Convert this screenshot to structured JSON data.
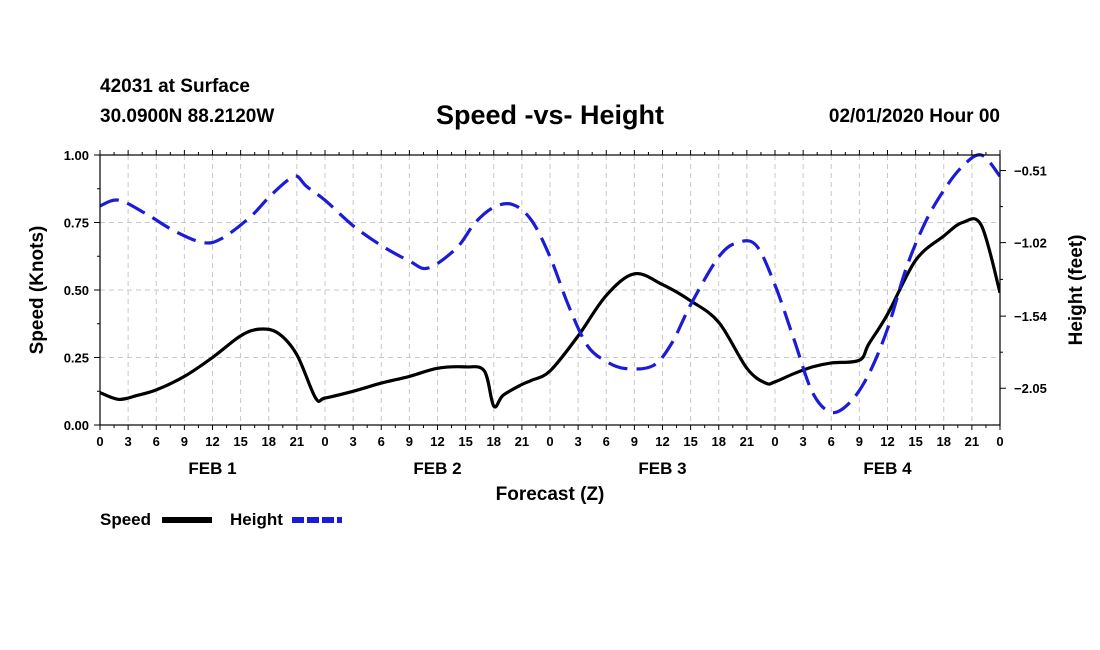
{
  "header": {
    "station": "42031 at Surface",
    "coords": "30.0900N 88.2120W",
    "title": "Speed -vs- Height",
    "datetime": "02/01/2020 Hour 00"
  },
  "chart_data": {
    "type": "line",
    "title": "Speed -vs- Height",
    "xlabel": "Forecast (Z)",
    "ylabel": "Speed (Knots)",
    "y2label": "Height (feet)",
    "grid": true,
    "x_unit": "hours since 02/01/2020 00Z",
    "xlim": [
      0,
      96
    ],
    "ylim": [
      0,
      1.0
    ],
    "y2lim": [
      -2.31,
      -0.4
    ],
    "x_ticks": [
      0,
      3,
      6,
      9,
      12,
      15,
      18,
      21,
      24,
      27,
      30,
      33,
      36,
      39,
      42,
      45,
      48,
      51,
      54,
      57,
      60,
      63,
      66,
      69,
      72,
      75,
      78,
      81,
      84,
      87,
      90,
      93,
      96
    ],
    "x_tick_labels": [
      "0",
      "3",
      "6",
      "9",
      "12",
      "15",
      "18",
      "21",
      "0",
      "3",
      "6",
      "9",
      "12",
      "15",
      "18",
      "21",
      "0",
      "3",
      "6",
      "9",
      "12",
      "15",
      "18",
      "21",
      "0",
      "3",
      "6",
      "9",
      "12",
      "15",
      "18",
      "21",
      "0"
    ],
    "y_ticks": [
      0,
      0.25,
      0.5,
      0.75,
      1.0
    ],
    "y_tick_labels": [
      "0.00",
      "0.25",
      "0.50",
      "0.75",
      "1.00"
    ],
    "y2_ticks": [
      -2.05,
      -1.54,
      -1.02,
      -0.51
    ],
    "y2_tick_labels": [
      "−2.05",
      "−1.54",
      "−1.02",
      "−0.51"
    ],
    "day_labels": [
      {
        "x": 12,
        "label": "FEB 1"
      },
      {
        "x": 36,
        "label": "FEB 2"
      },
      {
        "x": 60,
        "label": "FEB 3"
      },
      {
        "x": 84,
        "label": "FEB 4"
      }
    ],
    "series": [
      {
        "name": "Speed",
        "axis": "left",
        "color": "#000000",
        "dash": "solid",
        "x": [
          0,
          2,
          4,
          6,
          9,
          12,
          15,
          17,
          19,
          21,
          23,
          24,
          27,
          30,
          33,
          36,
          39,
          41,
          42,
          43,
          45,
          46,
          48,
          51,
          54,
          57,
          60,
          63,
          66,
          69,
          71,
          72,
          74,
          76,
          78,
          81,
          82,
          84,
          87,
          90,
          92,
          94,
          96
        ],
        "values": [
          0.12,
          0.095,
          0.11,
          0.13,
          0.18,
          0.25,
          0.33,
          0.355,
          0.34,
          0.26,
          0.1,
          0.1,
          0.125,
          0.155,
          0.18,
          0.21,
          0.215,
          0.2,
          0.07,
          0.11,
          0.15,
          0.165,
          0.2,
          0.33,
          0.48,
          0.56,
          0.52,
          0.46,
          0.38,
          0.21,
          0.155,
          0.16,
          0.19,
          0.215,
          0.23,
          0.24,
          0.3,
          0.41,
          0.61,
          0.7,
          0.75,
          0.74,
          0.49
        ]
      },
      {
        "name": "Height",
        "axis": "right",
        "color": "#1c1cd6",
        "dash": "dashed",
        "x": [
          0,
          2,
          5,
          8,
          11,
          13,
          16,
          18,
          20,
          21,
          22,
          24,
          27,
          30,
          33,
          35,
          38,
          40,
          42,
          44,
          46,
          48,
          50,
          52,
          54,
          56,
          59,
          61,
          63,
          66,
          68,
          70,
          72,
          74,
          76,
          78,
          80,
          82,
          84,
          86,
          88,
          90,
          92,
          94,
          96
        ],
        "values": [
          -0.76,
          -0.72,
          -0.82,
          -0.94,
          -1.02,
          -0.99,
          -0.84,
          -0.7,
          -0.58,
          -0.55,
          -0.62,
          -0.72,
          -0.9,
          -1.04,
          -1.15,
          -1.2,
          -1.06,
          -0.88,
          -0.77,
          -0.75,
          -0.86,
          -1.12,
          -1.47,
          -1.75,
          -1.86,
          -1.91,
          -1.89,
          -1.73,
          -1.46,
          -1.12,
          -1.02,
          -1.04,
          -1.32,
          -1.7,
          -2.08,
          -2.22,
          -2.15,
          -1.95,
          -1.63,
          -1.2,
          -0.88,
          -0.65,
          -0.48,
          -0.4,
          -0.55
        ]
      }
    ],
    "legend": [
      {
        "label": "Speed",
        "color": "#000000",
        "dash": "solid"
      },
      {
        "label": "Height",
        "color": "#1c1cd6",
        "dash": "dashed"
      }
    ],
    "legend_placement": "bottom-left"
  }
}
